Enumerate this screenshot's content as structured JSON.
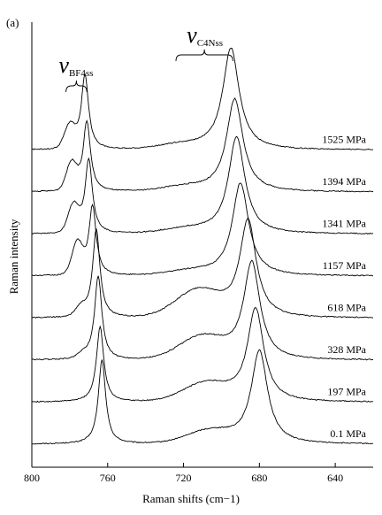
{
  "chart_data": {
    "type": "line",
    "panel_label": "(a)",
    "xlabel": "Raman shifts (cm−1)",
    "ylabel": "Raman intensity",
    "xlim": [
      800,
      620
    ],
    "x_ticks": [
      "800",
      "760",
      "720",
      "680",
      "640"
    ],
    "x_tick_values": [
      800,
      760,
      720,
      680,
      640
    ],
    "x_reversed": true,
    "y_ticks_shown": false,
    "grid": false,
    "annotations": [
      {
        "symbol": "ν",
        "subscript": "BF4ss",
        "range": [
          782,
          771
        ]
      },
      {
        "symbol": "ν",
        "subscript": "C4Nss",
        "range": [
          724,
          694
        ]
      }
    ],
    "series": [
      {
        "name": "0.1 MPa",
        "bf4_peak": 763,
        "bf4_height": 0.95,
        "bf4_shoulder_height": 0.0,
        "c4n_peak": 680,
        "c4n_height": 1.05,
        "c4n_shoulder_height": 0.14
      },
      {
        "name": "197 MPa",
        "bf4_peak": 764,
        "bf4_height": 0.85,
        "bf4_shoulder_height": 0.0,
        "c4n_peak": 682,
        "c4n_height": 1.05,
        "c4n_shoulder_height": 0.2
      },
      {
        "name": "328 MPa",
        "bf4_peak": 765,
        "bf4_height": 0.95,
        "bf4_shoulder_height": 0.05,
        "c4n_peak": 684,
        "c4n_height": 1.1,
        "c4n_shoulder_height": 0.25
      },
      {
        "name": "618 MPa",
        "bf4_peak": 766,
        "bf4_height": 1.0,
        "bf4_shoulder_height": 0.1,
        "c4n_peak": 686,
        "c4n_height": 1.1,
        "c4n_shoulder_height": 0.3
      },
      {
        "name": "1157 MPa",
        "bf4_peak": 768,
        "bf4_height": 0.8,
        "bf4_shoulder_height": 0.35,
        "c4n_peak": 690,
        "c4n_height": 1.05,
        "c4n_shoulder_height": 0.05
      },
      {
        "name": "1341 MPa",
        "bf4_peak": 770,
        "bf4_height": 0.85,
        "bf4_shoulder_height": 0.3,
        "c4n_peak": 692,
        "c4n_height": 1.1,
        "c4n_shoulder_height": 0.05
      },
      {
        "name": "1394 MPa",
        "bf4_peak": 771,
        "bf4_height": 0.8,
        "bf4_shoulder_height": 0.3,
        "c4n_peak": 693,
        "c4n_height": 1.05,
        "c4n_shoulder_height": 0.05
      },
      {
        "name": "1525 MPa",
        "bf4_peak": 772,
        "bf4_height": 0.85,
        "bf4_shoulder_height": 0.25,
        "c4n_peak": 695,
        "c4n_height": 1.15,
        "c4n_shoulder_height": 0.05
      }
    ]
  }
}
